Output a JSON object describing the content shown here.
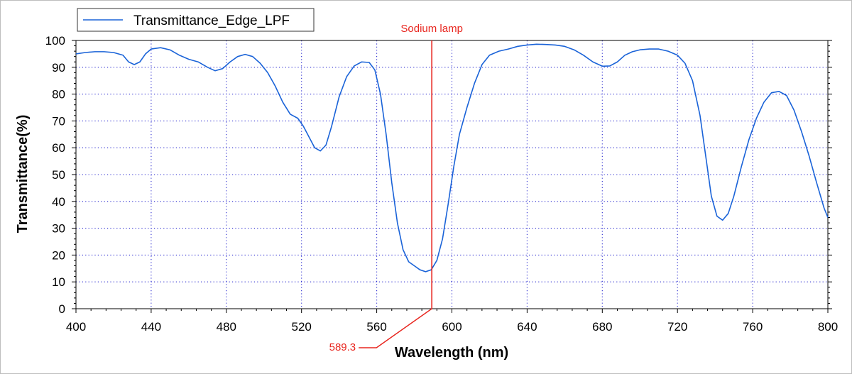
{
  "chart_data": {
    "type": "line",
    "xlabel": "Wavelength (nm)",
    "ylabel": "Transmittance(%)",
    "xlim": [
      400,
      800
    ],
    "ylim": [
      0,
      100
    ],
    "x_ticks": [
      400,
      440,
      480,
      520,
      560,
      600,
      640,
      680,
      720,
      760,
      800
    ],
    "y_ticks": [
      0,
      10,
      20,
      30,
      40,
      50,
      60,
      70,
      80,
      90,
      100
    ],
    "grid": true,
    "legend_position": "top-left",
    "series": [
      {
        "name": "Transmittance_Edge_LPF",
        "color": "#1a63d8",
        "points": [
          [
            400,
            95
          ],
          [
            405,
            95.5
          ],
          [
            410,
            95.8
          ],
          [
            415,
            95.8
          ],
          [
            420,
            95.5
          ],
          [
            425,
            94.5
          ],
          [
            428,
            92
          ],
          [
            431,
            91
          ],
          [
            434,
            92
          ],
          [
            437,
            95
          ],
          [
            440,
            96.8
          ],
          [
            445,
            97.3
          ],
          [
            450,
            96.5
          ],
          [
            455,
            94.5
          ],
          [
            460,
            93
          ],
          [
            465,
            92
          ],
          [
            470,
            90
          ],
          [
            474,
            88.7
          ],
          [
            478,
            89.5
          ],
          [
            482,
            92
          ],
          [
            486,
            94
          ],
          [
            490,
            94.8
          ],
          [
            494,
            94
          ],
          [
            498,
            91.5
          ],
          [
            502,
            88
          ],
          [
            506,
            83
          ],
          [
            510,
            77
          ],
          [
            514,
            72.5
          ],
          [
            518,
            71
          ],
          [
            521,
            68
          ],
          [
            524,
            64
          ],
          [
            527,
            60
          ],
          [
            530,
            58.8
          ],
          [
            533,
            61
          ],
          [
            536,
            68
          ],
          [
            540,
            79
          ],
          [
            544,
            86.5
          ],
          [
            548,
            90.5
          ],
          [
            552,
            92
          ],
          [
            556,
            91.8
          ],
          [
            559,
            89
          ],
          [
            562,
            80
          ],
          [
            565,
            65
          ],
          [
            568,
            47
          ],
          [
            571,
            32
          ],
          [
            574,
            22
          ],
          [
            577,
            17.5
          ],
          [
            580,
            16
          ],
          [
            583,
            14.5
          ],
          [
            586,
            13.8
          ],
          [
            589,
            14.5
          ],
          [
            592,
            18
          ],
          [
            595,
            26
          ],
          [
            598,
            39
          ],
          [
            601,
            53
          ],
          [
            604,
            65
          ],
          [
            608,
            75
          ],
          [
            612,
            84
          ],
          [
            616,
            91
          ],
          [
            620,
            94.5
          ],
          [
            625,
            96
          ],
          [
            630,
            96.8
          ],
          [
            635,
            97.8
          ],
          [
            640,
            98.3
          ],
          [
            645,
            98.6
          ],
          [
            650,
            98.5
          ],
          [
            655,
            98.3
          ],
          [
            660,
            97.8
          ],
          [
            665,
            96.5
          ],
          [
            670,
            94.5
          ],
          [
            675,
            92
          ],
          [
            680,
            90.4
          ],
          [
            684,
            90.5
          ],
          [
            688,
            92
          ],
          [
            692,
            94.5
          ],
          [
            696,
            95.8
          ],
          [
            700,
            96.5
          ],
          [
            705,
            96.8
          ],
          [
            710,
            96.8
          ],
          [
            715,
            96
          ],
          [
            720,
            94.5
          ],
          [
            724,
            91.5
          ],
          [
            728,
            85
          ],
          [
            732,
            72
          ],
          [
            735,
            57
          ],
          [
            738,
            42
          ],
          [
            741,
            34.5
          ],
          [
            744,
            33
          ],
          [
            747,
            35.5
          ],
          [
            750,
            42
          ],
          [
            754,
            53
          ],
          [
            758,
            63
          ],
          [
            762,
            71
          ],
          [
            766,
            77
          ],
          [
            770,
            80.5
          ],
          [
            774,
            81
          ],
          [
            778,
            79.5
          ],
          [
            782,
            74
          ],
          [
            786,
            66
          ],
          [
            790,
            57
          ],
          [
            794,
            47
          ],
          [
            798,
            37.5
          ],
          [
            800,
            34
          ]
        ]
      }
    ],
    "annotations": [
      {
        "label": "Sodium lamp",
        "x": 589.3,
        "color": "#e8261f"
      },
      {
        "label": "589.3",
        "x": 589.3,
        "color": "#e8261f"
      }
    ]
  }
}
